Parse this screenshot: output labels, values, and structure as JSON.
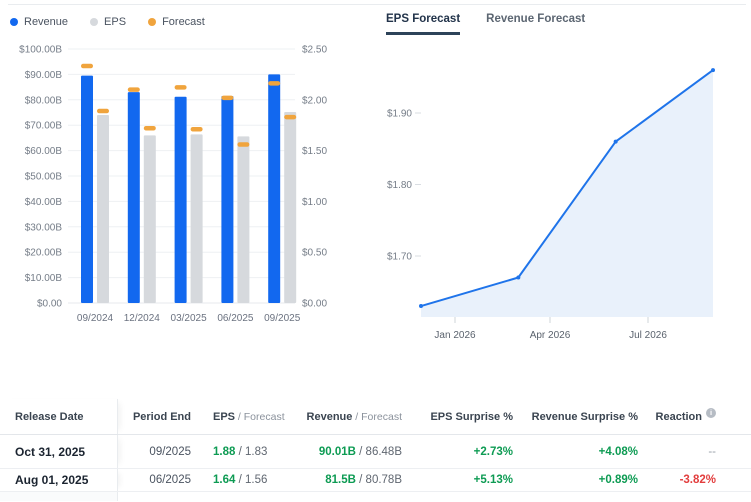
{
  "colors": {
    "revenue_blue": "#1268ef",
    "eps_gray": "#d6d9dd",
    "forecast_orange": "#f0a43d",
    "line_blue": "#1f74ea",
    "area_fill": "#e9f1fb",
    "positive_green": "#0d9b53",
    "negative_red": "#e23d3d",
    "grid": "#eef0f3",
    "axis_text": "#757d88"
  },
  "legend": {
    "items": [
      {
        "id": "revenue",
        "label": "Revenue",
        "color": "#1268ef"
      },
      {
        "id": "eps",
        "label": "EPS",
        "color": "#d6d9dd"
      },
      {
        "id": "forecast",
        "label": "Forecast",
        "color": "#f0a43d"
      }
    ]
  },
  "tabs": {
    "active_label": "EPS Forecast",
    "inactive_label": "Revenue Forecast"
  },
  "chart_data": [
    {
      "type": "bar",
      "categories": [
        "09/2024",
        "12/2024",
        "03/2025",
        "06/2025",
        "09/2025"
      ],
      "series": [
        {
          "name": "Revenue",
          "axis": "left",
          "style": "bar",
          "color": "#1268ef",
          "values": [
            89.5,
            83.0,
            81.2,
            81.5,
            90.01
          ]
        },
        {
          "name": "EPS",
          "axis": "right",
          "style": "bar",
          "color": "#d6d9dd",
          "values": [
            1.85,
            1.65,
            1.66,
            1.64,
            1.88
          ]
        },
        {
          "name": "Revenue Forecast",
          "axis": "left",
          "style": "marker",
          "color": "#f0a43d",
          "values": [
            93.3,
            84.0,
            84.9,
            80.78,
            86.48
          ]
        },
        {
          "name": "EPS Forecast",
          "axis": "right",
          "style": "marker",
          "color": "#f0a43d",
          "values": [
            1.89,
            1.72,
            1.71,
            1.56,
            1.83
          ]
        }
      ],
      "left_axis": {
        "ticks": [
          "$100.00B",
          "$90.00B",
          "$80.00B",
          "$70.00B",
          "$60.00B",
          "$50.00B",
          "$40.00B",
          "$30.00B",
          "$20.00B",
          "$10.00B",
          "$0.00"
        ],
        "min": 0,
        "max": 100
      },
      "right_axis": {
        "ticks": [
          "$2.50",
          "$2.00",
          "$1.50",
          "$1.00",
          "$0.50",
          "$0.00"
        ],
        "min": 0,
        "max": 2.5
      },
      "grid": true,
      "legend_position": "top-left"
    },
    {
      "type": "area",
      "x": [
        "12/2025",
        "03/2026",
        "06/2026",
        "09/2026"
      ],
      "values": [
        1.63,
        1.67,
        1.86,
        1.96
      ],
      "y_axis": {
        "ticks": [
          "$1.90",
          "$1.80",
          "$1.70"
        ],
        "tick_values": [
          1.9,
          1.8,
          1.7
        ]
      },
      "x_axis": {
        "ticks": [
          "Jan 2026",
          "Apr 2026",
          "Jul 2026"
        ]
      },
      "ylim": [
        1.61,
        1.99
      ],
      "grid": false,
      "line_color": "#1f74ea",
      "fill_color": "#e9f1fb"
    }
  ],
  "table": {
    "columns": [
      {
        "label": "Release Date"
      },
      {
        "label": "Period End"
      },
      {
        "label": "EPS",
        "sub": "/  Forecast"
      },
      {
        "label": "Revenue",
        "sub": "/  Forecast"
      },
      {
        "label": "EPS Surprise %"
      },
      {
        "label": "Revenue Surprise %"
      },
      {
        "label": "Reaction",
        "info": true
      }
    ],
    "rows": [
      {
        "release_date": "Oct 31, 2025",
        "period_end": "09/2025",
        "eps": "1.88",
        "eps_forecast": "1.83",
        "revenue": "90.01B",
        "revenue_forecast": "86.48B",
        "eps_surprise": "+2.73%",
        "revenue_surprise": "+4.08%",
        "reaction": "--",
        "reaction_style": "muted"
      },
      {
        "release_date": "Aug 01, 2025",
        "period_end": "06/2025",
        "eps": "1.64",
        "eps_forecast": "1.56",
        "revenue": "81.5B",
        "revenue_forecast": "80.78B",
        "eps_surprise": "+5.13%",
        "revenue_surprise": "+0.89%",
        "reaction": "-3.82%",
        "reaction_style": "negative"
      }
    ]
  }
}
